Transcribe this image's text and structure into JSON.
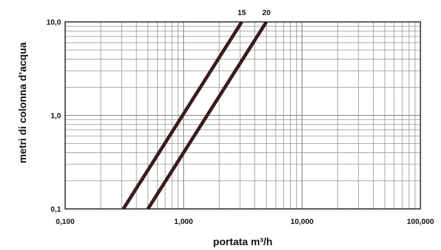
{
  "chart_data": {
    "type": "line",
    "title": "",
    "xlabel": "portata m³/h",
    "ylabel": "metri di colonna d’acqua",
    "x_scale": "log",
    "y_scale": "log",
    "xlim": [
      0.1,
      100
    ],
    "ylim": [
      0.1,
      10
    ],
    "x_ticks": [
      "0,100",
      "1,000",
      "10,000",
      "100,000"
    ],
    "y_ticks": [
      "0,1",
      "1,0",
      "10,0"
    ],
    "grid": true,
    "colors": {
      "line": "#3a1c1c",
      "grid": "#8c8c8c",
      "frame": "#222222"
    },
    "series": [
      {
        "name": "15",
        "x": [
          0.31,
          3.1
        ],
        "y": [
          0.1,
          10
        ]
      },
      {
        "name": "20",
        "x": [
          0.5,
          5.0
        ],
        "y": [
          0.1,
          10
        ]
      }
    ]
  }
}
